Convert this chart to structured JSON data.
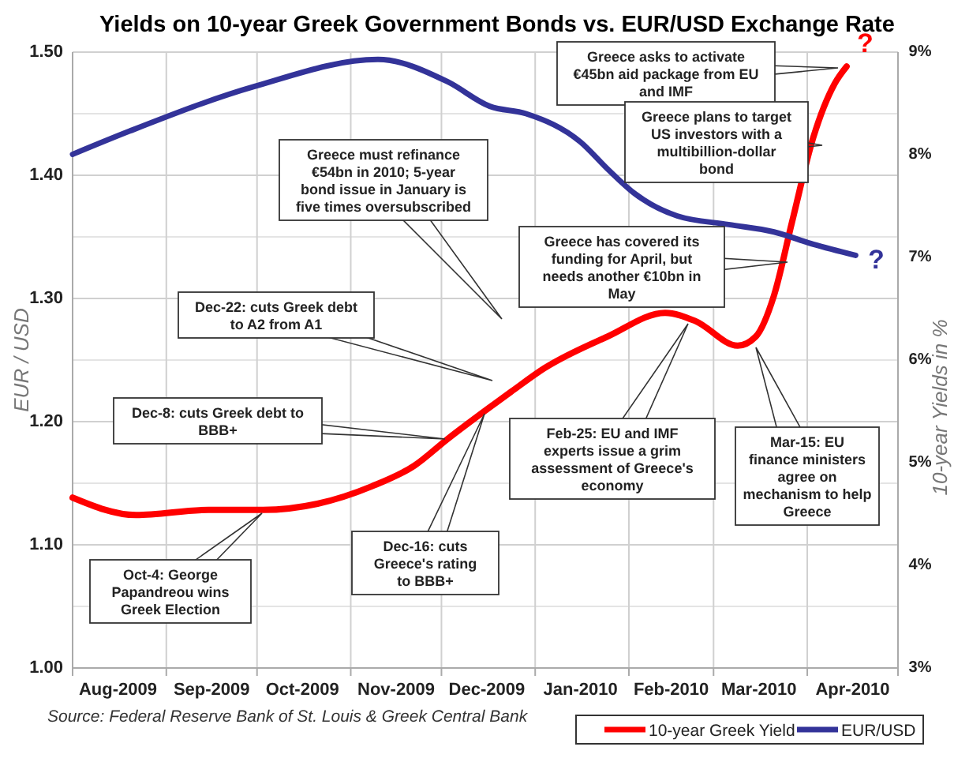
{
  "chart_data": {
    "type": "line",
    "title": "Yields  on 10-year Greek Government Bonds vs. EUR/USD Exchange Rate",
    "ylabel": "EUR / USD",
    "y2label": "10-year Yields in %",
    "xlim": [
      "2009-08-01",
      "2010-05-01"
    ],
    "xticks": [
      {
        "value": "2009-08-01",
        "label": null
      },
      {
        "value": "2009-08-16",
        "label": "Aug-2009"
      },
      {
        "value": "2009-09-01",
        "label": null
      },
      {
        "value": "2009-09-16",
        "label": "Sep-2009"
      },
      {
        "value": "2009-10-01",
        "label": null
      },
      {
        "value": "2009-10-16",
        "label": "Oct-2009"
      },
      {
        "value": "2009-11-01",
        "label": null
      },
      {
        "value": "2009-11-16",
        "label": "Nov-2009"
      },
      {
        "value": "2009-12-01",
        "label": null
      },
      {
        "value": "2009-12-16",
        "label": "Dec-2009"
      },
      {
        "value": "2010-01-01",
        "label": null
      },
      {
        "value": "2010-01-16",
        "label": "Jan-2010"
      },
      {
        "value": "2010-02-01",
        "label": null
      },
      {
        "value": "2010-02-15",
        "label": "Feb-2010"
      },
      {
        "value": "2010-03-01",
        "label": null
      },
      {
        "value": "2010-03-16",
        "label": "Mar-2010"
      },
      {
        "value": "2010-04-01",
        "label": null
      },
      {
        "value": "2010-04-16",
        "label": "Apr-2010"
      },
      {
        "value": "2010-05-01",
        "label": null
      }
    ],
    "ylim": [
      1.0,
      1.5
    ],
    "yticks": [
      {
        "value": 1.0,
        "label": "1.00"
      },
      {
        "value": 1.1,
        "label": "1.10"
      },
      {
        "value": 1.2,
        "label": "1.20"
      },
      {
        "value": 1.3,
        "label": "1.30"
      },
      {
        "value": 1.4,
        "label": "1.40"
      },
      {
        "value": 1.5,
        "label": "1.50"
      }
    ],
    "y2lim": [
      3,
      9
    ],
    "y2ticks": [
      {
        "value": 3,
        "label": "3%"
      },
      {
        "value": 4,
        "label": "4%"
      },
      {
        "value": 5,
        "label": "5%"
      },
      {
        "value": 6,
        "label": "6%"
      },
      {
        "value": 7,
        "label": "7%"
      },
      {
        "value": 8,
        "label": "8%"
      },
      {
        "value": 9,
        "label": "9%"
      }
    ],
    "grid": true,
    "legend": "bottom",
    "marker": "none",
    "line_style": "solid",
    "series": [
      {
        "name": "10-year Greek Yield",
        "color": "#ff0000",
        "axis": "y2",
        "x": [
          "2009-08-01",
          "2009-08-22",
          "2009-09-15",
          "2009-10-03",
          "2009-10-21",
          "2009-11-08",
          "2009-11-22",
          "2009-12-03",
          "2009-12-17",
          "2009-12-24",
          "2010-01-04",
          "2010-01-25",
          "2010-02-13",
          "2010-02-23",
          "2010-03-09",
          "2010-03-15",
          "2010-03-21",
          "2010-03-27",
          "2010-04-03",
          "2010-04-10",
          "2010-04-14"
        ],
        "values": [
          4.66,
          4.49,
          4.54,
          4.54,
          4.6,
          4.77,
          4.97,
          5.23,
          5.54,
          5.69,
          5.92,
          6.23,
          6.46,
          6.38,
          6.14,
          6.23,
          6.63,
          7.35,
          8.17,
          8.69,
          8.86
        ]
      },
      {
        "name": "EUR/USD",
        "color": "#333399",
        "x": [
          "2009-08-01",
          "2009-08-20",
          "2009-09-30",
          "2009-11-10",
          "2009-12-03",
          "2009-12-17",
          "2009-12-29",
          "2010-01-16",
          "2010-01-25",
          "2010-02-03",
          "2010-02-17",
          "2010-03-06",
          "2010-03-21",
          "2010-04-03",
          "2010-04-17"
        ],
        "values": [
          1.417,
          1.436,
          1.472,
          1.494,
          1.476,
          1.456,
          1.45,
          1.427,
          1.405,
          1.385,
          1.367,
          1.36,
          1.354,
          1.344,
          1.335
        ]
      }
    ],
    "annotations": [
      "Greece asks to activate €45bn aid package from EU and IMF",
      "Greece plans to target US investors with a multibillion-dollar bond",
      "Greece must refinance €54bn in 2010; 5-year bond issue in January is five times oversubscribed",
      "Greece has covered its funding for April, but needs another €10bn in May",
      "Dec-22: cuts Greek debt to A2 from A1",
      "Dec-8: cuts Greek debt to BBB+",
      "Oct-4: George Papandreou wins Greek Election",
      "Dec-16: cuts Greece's rating to BBB+",
      "Feb-25: EU and IMF experts issue a grim assessment of Greece's economy",
      "Mar-15: EU finance ministers agree on mechanism to help Greece",
      "?",
      "?",
      "Source: Federal Reserve Bank of St. Louis & Greek Central Bank"
    ]
  }
}
